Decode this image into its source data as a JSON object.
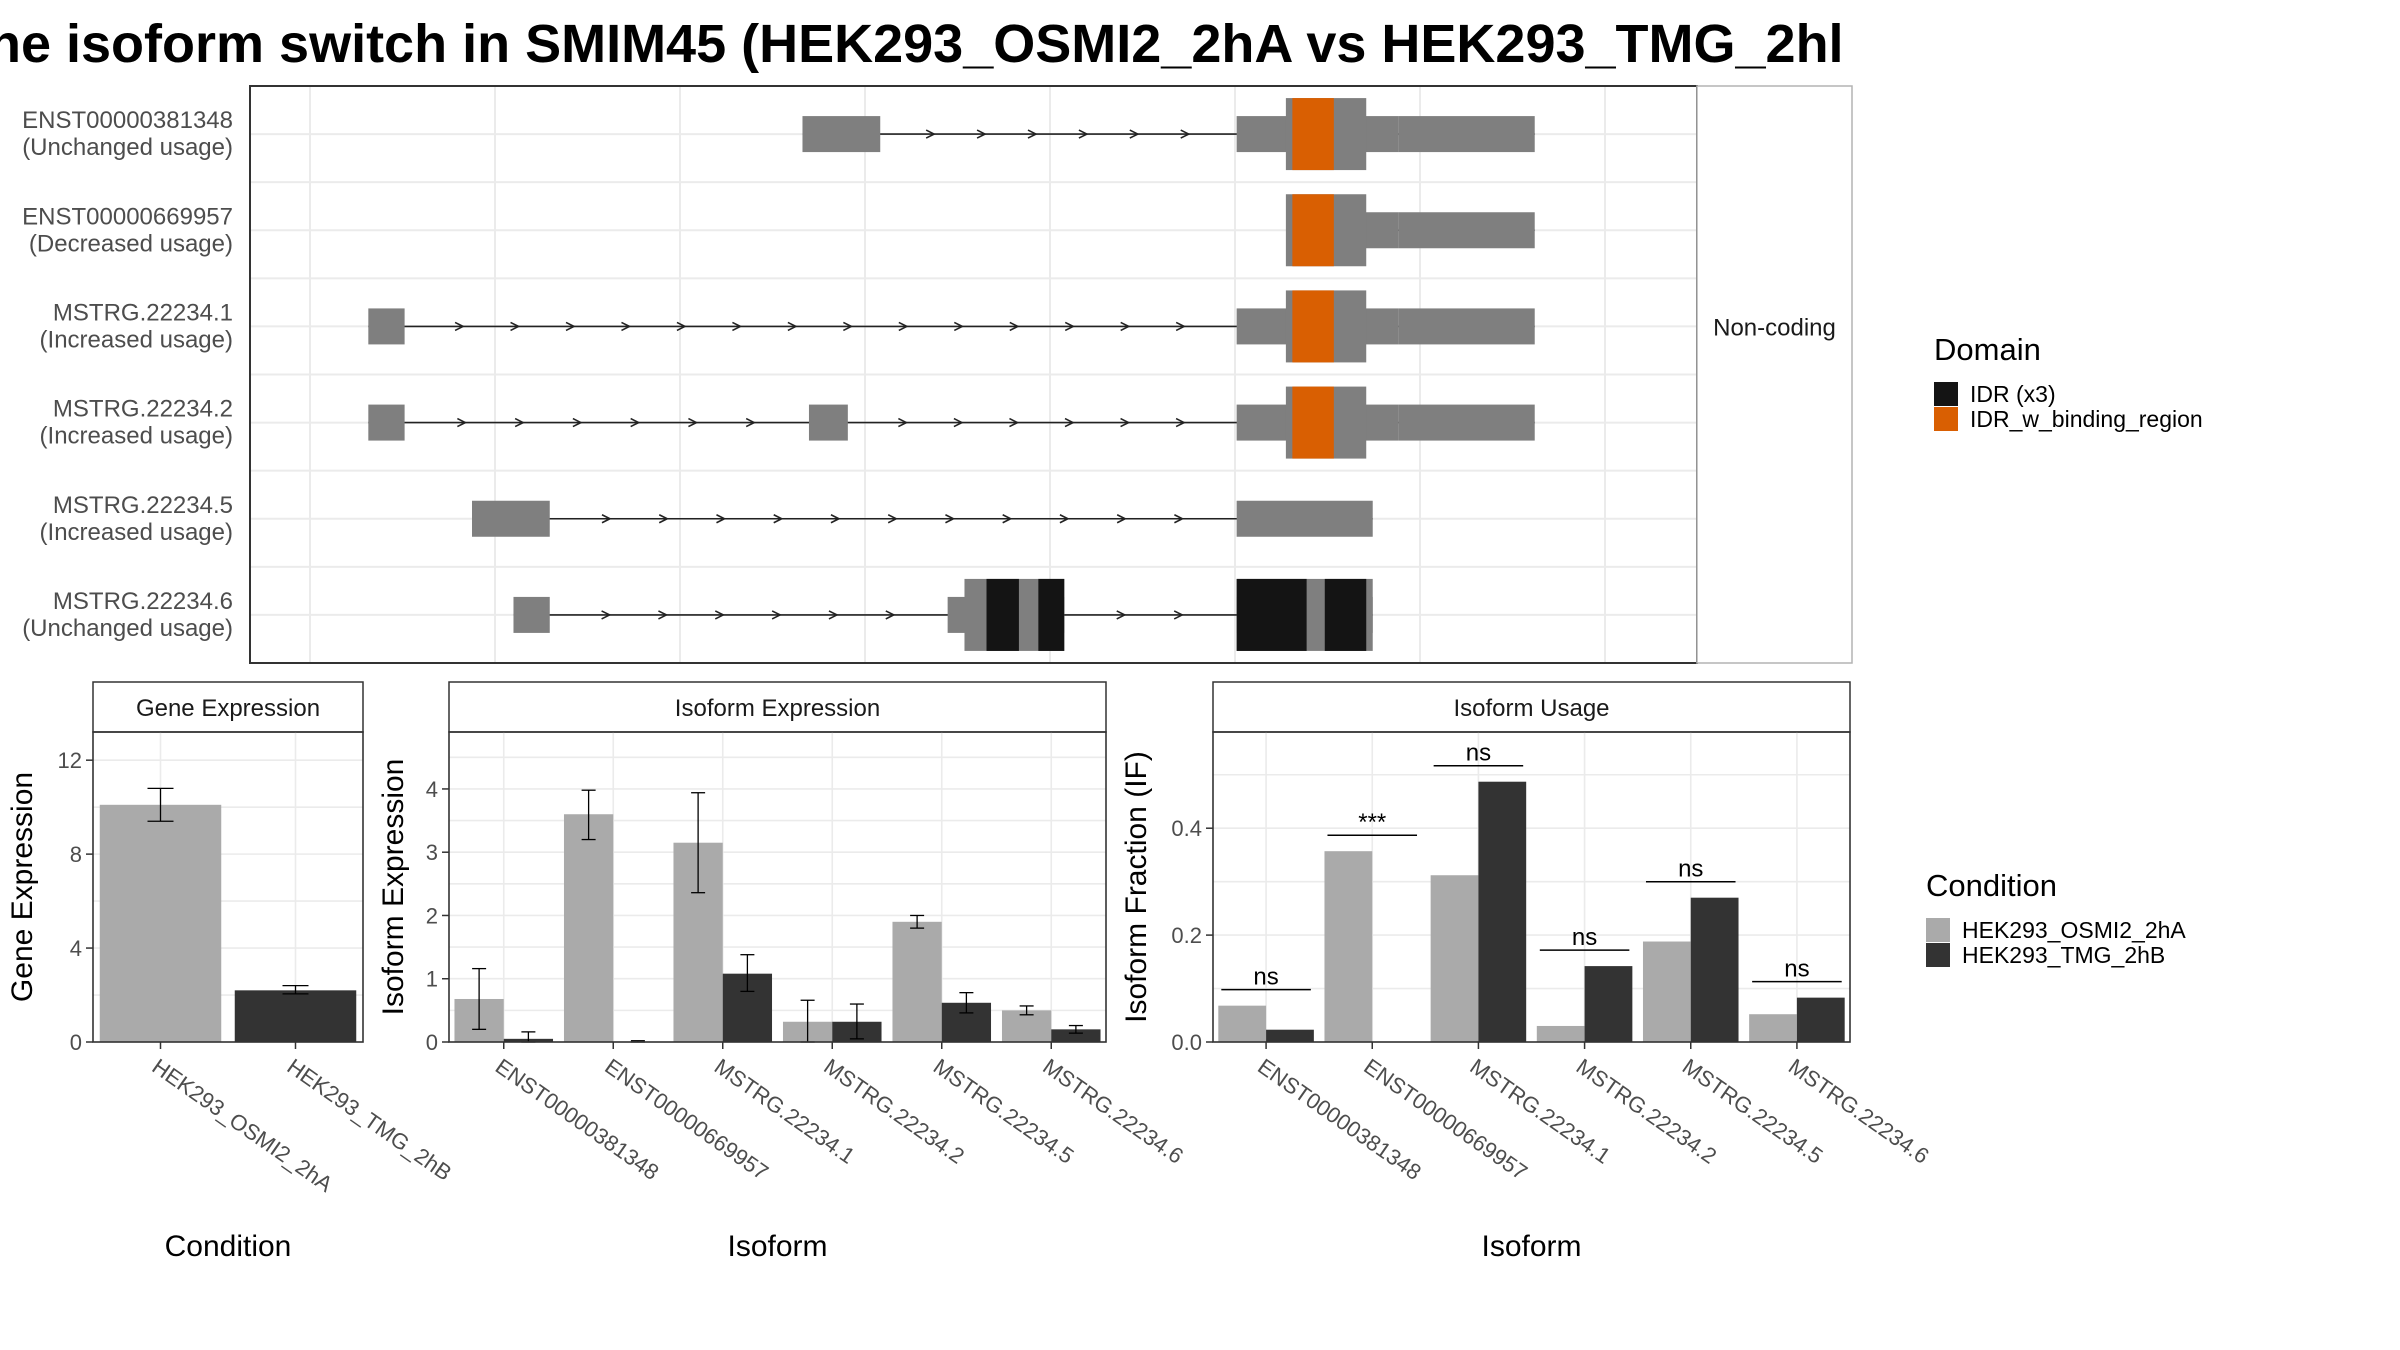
{
  "title": "ne isoform switch in SMIM45 (HEK293_OSMI2_2hA vs HEK293_TMG_2hl",
  "colors": {
    "utr": "#7f7f7f",
    "idr": "#141414",
    "idr_binding": "#d95f02",
    "cond_a": "#aaaaaa",
    "cond_b": "#333333",
    "grid": "#ebebeb",
    "panel_border": "#333333"
  },
  "chart_data": [
    {
      "type": "gene-structure",
      "strip_label": "Non-coding",
      "x_range": [
        0,
        1000
      ],
      "transcripts": [
        {
          "name": "ENST00000381348",
          "status": "(Unchanged usage)",
          "exons": [
            [
              380,
              440
            ],
            [
              715,
              840
            ],
            [
              840,
              945
            ]
          ],
          "domains": [
            {
              "range": [
                758,
                790
              ],
              "domain": "IDR_w_binding_region",
              "wide": true
            }
          ]
        },
        {
          "name": "ENST00000669957",
          "status": "(Decreased usage)",
          "exons": [
            [
              812,
              840
            ],
            [
              840,
              945
            ]
          ],
          "domains": [
            {
              "range": [
                758,
                790
              ],
              "domain": "IDR_w_binding_region",
              "wide": true
            }
          ]
        },
        {
          "name": "MSTRG.22234.1",
          "status": "(Increased usage)",
          "exons": [
            [
              45,
              73
            ],
            [
              715,
              840
            ],
            [
              840,
              945
            ]
          ],
          "domains": [
            {
              "range": [
                758,
                790
              ],
              "domain": "IDR_w_binding_region",
              "wide": true
            }
          ]
        },
        {
          "name": "MSTRG.22234.2",
          "status": "(Increased usage)",
          "exons": [
            [
              45,
              73
            ],
            [
              385,
              415
            ],
            [
              715,
              840
            ],
            [
              840,
              945
            ]
          ],
          "domains": [
            {
              "range": [
                758,
                790
              ],
              "domain": "IDR_w_binding_region",
              "wide": true
            }
          ]
        },
        {
          "name": "MSTRG.22234.5",
          "status": "(Increased usage)",
          "exons": [
            [
              125,
              185
            ],
            [
              715,
              820
            ]
          ],
          "domains": []
        },
        {
          "name": "MSTRG.22234.6",
          "status": "(Unchanged usage)",
          "exons": [
            [
              157,
              185
            ],
            [
              492,
              582
            ],
            [
              715,
              820
            ]
          ],
          "domains": [
            {
              "range": [
                522,
                547
              ],
              "domain": "IDR (x3)"
            },
            {
              "range": [
                562,
                582
              ],
              "domain": "IDR (x3)"
            },
            {
              "range": [
                715,
                769
              ],
              "domain": "IDR (x3)"
            },
            {
              "range": [
                783,
                815
              ],
              "domain": "IDR (x3)"
            }
          ]
        }
      ],
      "legend": {
        "title": "Domain",
        "items": [
          "IDR (x3)",
          "IDR_w_binding_region"
        ]
      }
    },
    {
      "type": "bar",
      "strip_label": "Gene Expression",
      "xlabel": "Condition",
      "ylabel": "Gene Expression",
      "ylim": [
        0,
        13.2
      ],
      "yticks": [
        0,
        4,
        8,
        12
      ],
      "categories": [
        "HEK293_OSMI2_2hA",
        "HEK293_TMG_2hB"
      ],
      "values": [
        10.1,
        2.2
      ],
      "errors": [
        [
          9.4,
          10.8
        ],
        [
          2.05,
          2.4
        ]
      ]
    },
    {
      "type": "bar",
      "strip_label": "Isoform Expression",
      "xlabel": "Isoform",
      "ylabel": "Isoform Expression",
      "ylim": [
        0,
        4.9
      ],
      "yticks": [
        0,
        1,
        2,
        3,
        4
      ],
      "categories": [
        "ENST00000381348",
        "ENST00000669957",
        "MSTRG.22234.1",
        "MSTRG.22234.2",
        "MSTRG.22234.5",
        "MSTRG.22234.6"
      ],
      "series": [
        {
          "name": "HEK293_OSMI2_2hA",
          "values": [
            0.68,
            3.6,
            3.15,
            0.32,
            1.9,
            0.5
          ],
          "errors": [
            [
              0.2,
              1.16
            ],
            [
              3.2,
              3.98
            ],
            [
              2.36,
              3.94
            ],
            [
              0.0,
              0.66
            ],
            [
              1.8,
              2.0
            ],
            [
              0.43,
              0.57
            ]
          ]
        },
        {
          "name": "HEK293_TMG_2hB",
          "values": [
            0.05,
            0.0,
            1.08,
            0.32,
            0.62,
            0.2
          ],
          "errors": [
            [
              0.0,
              0.16
            ],
            [
              0.0,
              0.02
            ],
            [
              0.8,
              1.38
            ],
            [
              0.05,
              0.6
            ],
            [
              0.46,
              0.78
            ],
            [
              0.14,
              0.26
            ]
          ]
        }
      ]
    },
    {
      "type": "bar",
      "strip_label": "Isoform Usage",
      "xlabel": "Isoform",
      "ylabel": "Isoform Fraction (IF)",
      "ylim": [
        0,
        0.58
      ],
      "yticks": [
        0.0,
        0.2,
        0.4
      ],
      "ytick_labels": [
        "0.0",
        "0.2",
        "0.4"
      ],
      "categories": [
        "ENST00000381348",
        "ENST00000669957",
        "MSTRG.22234.1",
        "MSTRG.22234.2",
        "MSTRG.22234.5",
        "MSTRG.22234.6"
      ],
      "series": [
        {
          "name": "HEK293_OSMI2_2hA",
          "values": [
            0.068,
            0.357,
            0.312,
            0.03,
            0.188,
            0.052
          ]
        },
        {
          "name": "HEK293_TMG_2hB",
          "values": [
            0.023,
            0.0,
            0.487,
            0.142,
            0.27,
            0.083
          ]
        }
      ],
      "significance": [
        "ns",
        "***",
        "ns",
        "ns",
        "ns",
        "ns"
      ]
    }
  ],
  "condition_legend": {
    "title": "Condition",
    "items": [
      "HEK293_OSMI2_2hA",
      "HEK293_TMG_2hB"
    ]
  }
}
